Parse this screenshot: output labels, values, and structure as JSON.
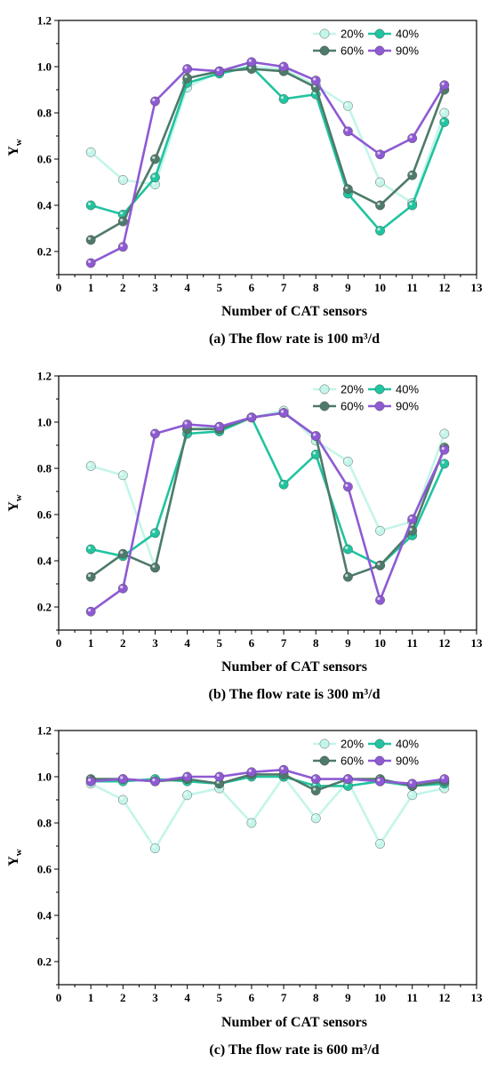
{
  "chart_data": [
    {
      "type": "line",
      "caption": "(a) The flow rate is 100 m³/d",
      "xlabel": "Number of CAT sensors",
      "ylabel": "Y",
      "ylabel_sub": "w",
      "xlim": [
        0,
        13
      ],
      "ylim": [
        0.1,
        1.2
      ],
      "xticks": [
        0,
        1,
        2,
        3,
        4,
        5,
        6,
        7,
        8,
        9,
        10,
        11,
        12,
        13
      ],
      "yticks": [
        0.2,
        0.4,
        0.6,
        0.8,
        1.0,
        1.2
      ],
      "ytick_labels": [
        "0.2",
        "0.4",
        "0.6",
        "0.8",
        "1.0",
        "1.2"
      ],
      "grid": false,
      "legend_position": "top-right",
      "x": [
        1,
        2,
        3,
        4,
        5,
        6,
        7,
        8,
        9,
        10,
        11,
        12
      ],
      "series": [
        {
          "name": "20%",
          "color": "#c4f5ea",
          "values": [
            0.63,
            0.51,
            0.49,
            0.91,
            0.98,
            1.0,
            0.99,
            0.92,
            0.83,
            0.5,
            0.41,
            0.8
          ]
        },
        {
          "name": "40%",
          "color": "#20c4a0",
          "values": [
            0.4,
            0.36,
            0.52,
            0.93,
            0.97,
            1.0,
            0.86,
            0.88,
            0.45,
            0.29,
            0.4,
            0.76
          ]
        },
        {
          "name": "60%",
          "color": "#4e7a6a",
          "values": [
            0.25,
            0.33,
            0.6,
            0.95,
            0.98,
            0.99,
            0.98,
            0.91,
            0.47,
            0.4,
            0.53,
            0.9
          ]
        },
        {
          "name": "90%",
          "color": "#8e5ad4",
          "values": [
            0.15,
            0.22,
            0.85,
            0.99,
            0.98,
            1.02,
            1.0,
            0.94,
            0.72,
            0.62,
            0.69,
            0.92
          ]
        }
      ]
    },
    {
      "type": "line",
      "caption": "(b) The flow rate is 300 m³/d",
      "xlabel": "Number of CAT sensors",
      "ylabel": "Y",
      "ylabel_sub": "w",
      "xlim": [
        0,
        13
      ],
      "ylim": [
        0.1,
        1.2
      ],
      "xticks": [
        0,
        1,
        2,
        3,
        4,
        5,
        6,
        7,
        8,
        9,
        10,
        11,
        12,
        13
      ],
      "yticks": [
        0.2,
        0.4,
        0.6,
        0.8,
        1.0,
        1.2
      ],
      "ytick_labels": [
        "0.2",
        "0.4",
        "0.6",
        "0.8",
        "1.0",
        "1.2"
      ],
      "grid": false,
      "legend_position": "top-right",
      "x": [
        1,
        2,
        3,
        4,
        5,
        6,
        7,
        8,
        9,
        10,
        11,
        12
      ],
      "series": [
        {
          "name": "20%",
          "color": "#c4f5ea",
          "values": [
            0.81,
            0.77,
            0.37,
            0.97,
            0.98,
            1.02,
            1.05,
            0.92,
            0.83,
            0.53,
            0.57,
            0.95
          ]
        },
        {
          "name": "40%",
          "color": "#20c4a0",
          "values": [
            0.45,
            0.42,
            0.52,
            0.95,
            0.96,
            1.02,
            0.73,
            0.86,
            0.45,
            0.38,
            0.51,
            0.82
          ]
        },
        {
          "name": "60%",
          "color": "#4e7a6a",
          "values": [
            0.33,
            0.43,
            0.37,
            0.97,
            0.97,
            1.02,
            1.04,
            0.94,
            0.33,
            0.38,
            0.53,
            0.89
          ]
        },
        {
          "name": "90%",
          "color": "#8e5ad4",
          "values": [
            0.18,
            0.28,
            0.95,
            0.99,
            0.98,
            1.02,
            1.04,
            0.94,
            0.72,
            0.23,
            0.58,
            0.88
          ]
        }
      ]
    },
    {
      "type": "line",
      "caption": "(c) The flow rate is 600 m³/d",
      "xlabel": "Number of CAT sensors",
      "ylabel": "Y",
      "ylabel_sub": "w",
      "xlim": [
        0,
        13
      ],
      "ylim": [
        0.1,
        1.2
      ],
      "xticks": [
        0,
        1,
        2,
        3,
        4,
        5,
        6,
        7,
        8,
        9,
        10,
        11,
        12,
        13
      ],
      "yticks": [
        0.2,
        0.4,
        0.6,
        0.8,
        1.0,
        1.2
      ],
      "ytick_labels": [
        "0.2",
        "0.4",
        "0.6",
        "0.8",
        "1.0",
        "1.2"
      ],
      "grid": false,
      "legend_position": "top-right",
      "x": [
        1,
        2,
        3,
        4,
        5,
        6,
        7,
        8,
        9,
        10,
        11,
        12
      ],
      "series": [
        {
          "name": "20%",
          "color": "#c4f5ea",
          "values": [
            0.97,
            0.9,
            0.69,
            0.92,
            0.95,
            0.8,
            1.0,
            0.82,
            0.98,
            0.71,
            0.92,
            0.95
          ]
        },
        {
          "name": "40%",
          "color": "#20c4a0",
          "values": [
            0.98,
            0.98,
            0.99,
            0.98,
            0.97,
            1.0,
            1.0,
            0.96,
            0.96,
            0.98,
            0.96,
            0.97
          ]
        },
        {
          "name": "60%",
          "color": "#4e7a6a",
          "values": [
            0.99,
            0.99,
            0.98,
            0.99,
            0.97,
            1.01,
            1.01,
            0.94,
            0.99,
            0.99,
            0.96,
            0.98
          ]
        },
        {
          "name": "90%",
          "color": "#8e5ad4",
          "values": [
            0.98,
            0.99,
            0.98,
            1.0,
            1.0,
            1.02,
            1.03,
            0.99,
            0.99,
            0.98,
            0.97,
            0.99
          ]
        }
      ]
    }
  ]
}
